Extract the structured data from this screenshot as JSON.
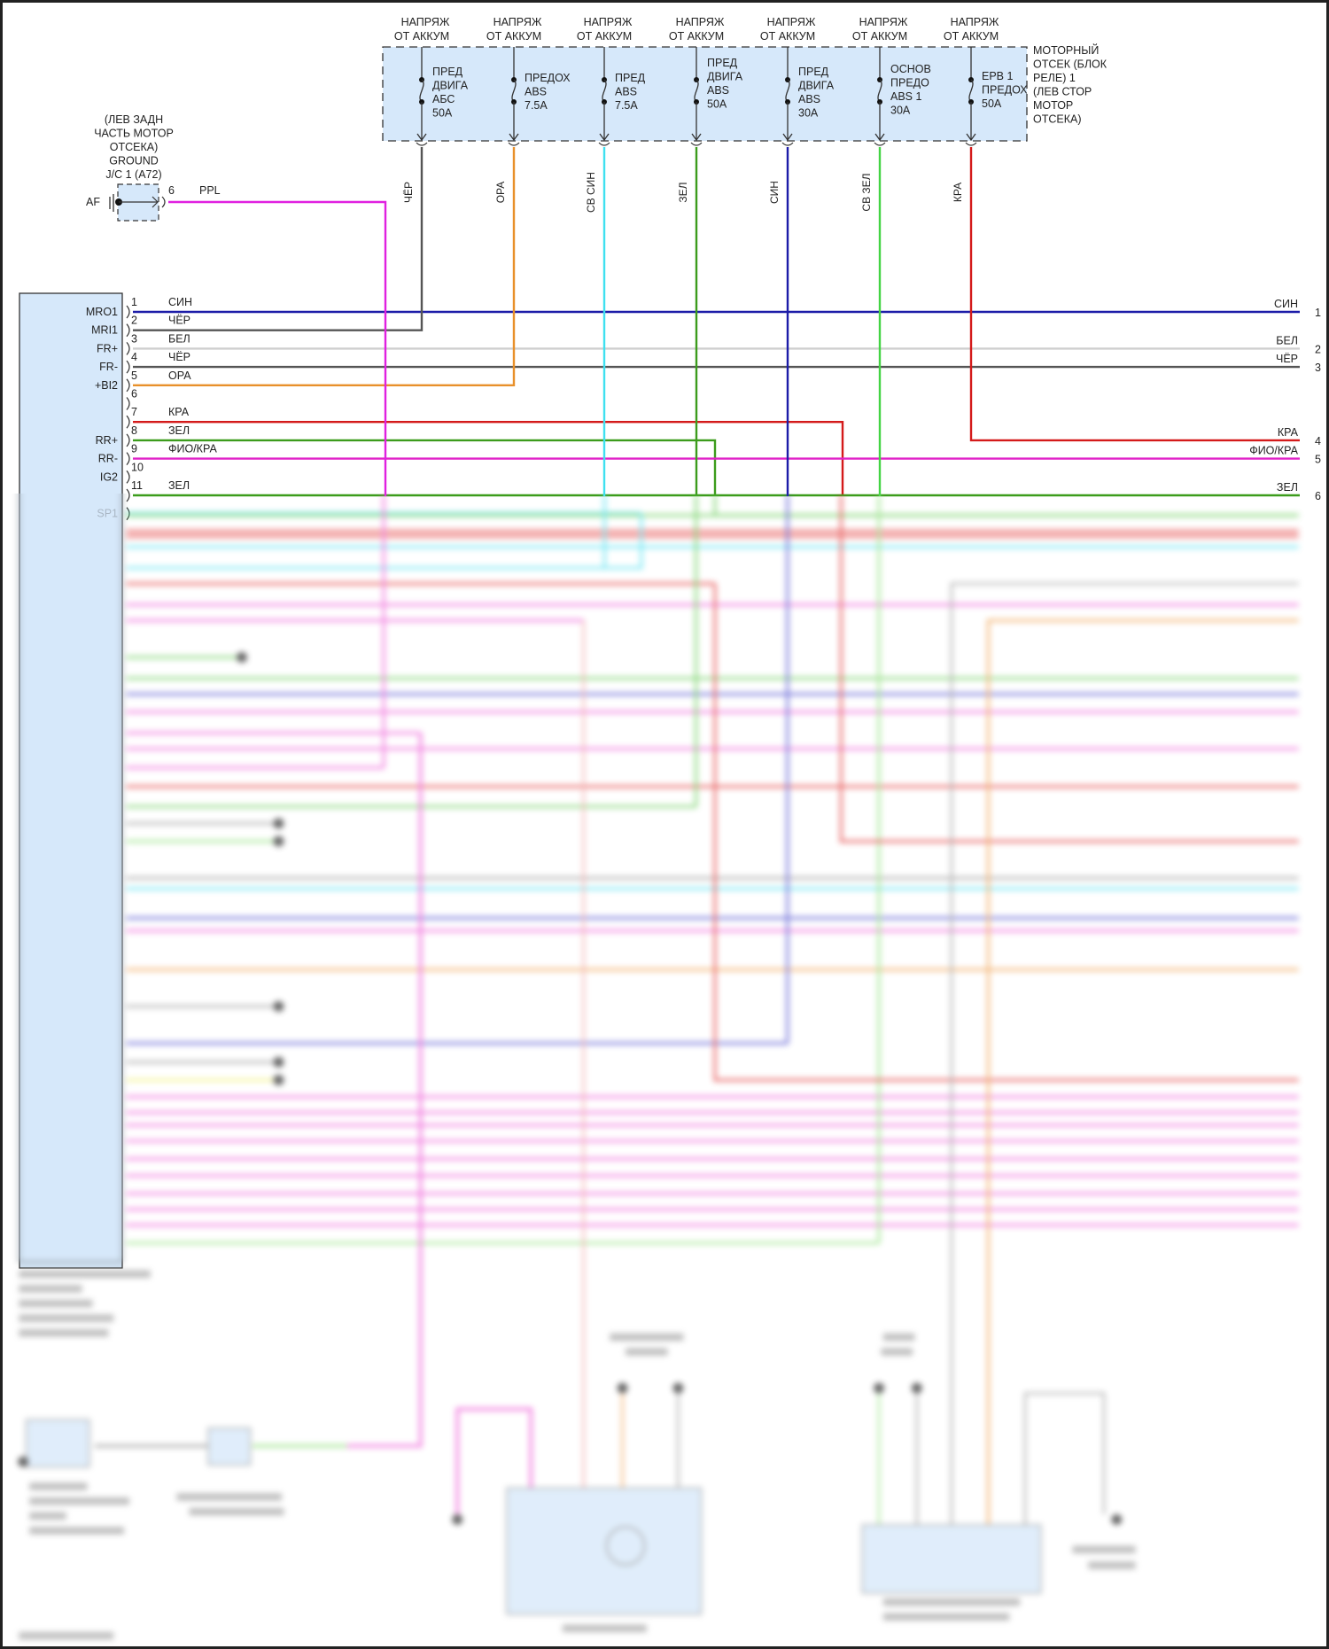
{
  "colors": {
    "СИН": "#1c1ca8",
    "ЧЁР": "#555555",
    "БЕЛ": "#cfcfcf",
    "ОРА": "#e8902a",
    "КРА": "#d41a1a",
    "ЗЕЛ": "#3c9c1c",
    "ФИО/КРА": "#e020c8",
    "СВ СИН": "#3fe0f0",
    "СВ ЗЕЛ": "#44d444",
    "PPL": "#e020e0",
    "box_fill": "#d6e8fa"
  },
  "fuse_block": {
    "location_lines": [
      "МОТОРНЫЙ",
      "ОТСЕК (БЛОК",
      "РЕЛЕ) 1",
      "(ЛЕВ СТОР",
      "МОТОР",
      "ОТСЕКА)"
    ],
    "fuses": [
      {
        "supply": [
          "НАПРЯЖ",
          "ОТ АККУМ"
        ],
        "label": [
          "ПРЕД",
          "ДВИГА",
          "АБС",
          "50A"
        ],
        "wire": "ЧЁР"
      },
      {
        "supply": [
          "НАПРЯЖ",
          "ОТ АККУМ"
        ],
        "label": [
          "ПРЕДОХ",
          "ABS",
          "7.5A"
        ],
        "wire": "ОРА"
      },
      {
        "supply": [
          "НАПРЯЖ",
          "ОТ АККУМ"
        ],
        "label": [
          "ПРЕД",
          "ABS",
          "7.5A"
        ],
        "wire": "СВ СИН"
      },
      {
        "supply": [
          "НАПРЯЖ",
          "ОТ АККУМ"
        ],
        "label": [
          "ПРЕД",
          "ДВИГА",
          "ABS",
          "50A"
        ],
        "wire": "ЗЕЛ"
      },
      {
        "supply": [
          "НАПРЯЖ",
          "ОТ АККУМ"
        ],
        "label": [
          "ПРЕД",
          "ДВИГА",
          "ABS",
          "30A"
        ],
        "wire": "СИН"
      },
      {
        "supply": [
          "НАПРЯЖ",
          "ОТ АККУМ"
        ],
        "label": [
          "ОСНОВ",
          "ПРЕДО",
          "ABS 1",
          "30A"
        ],
        "wire": "СВ ЗЕЛ"
      },
      {
        "supply": [
          "НАПРЯЖ",
          "ОТ АККУМ"
        ],
        "label": [
          "EPB 1",
          "ПРЕДОХ",
          "50A"
        ],
        "wire": "КРА"
      }
    ]
  },
  "ground": {
    "lines": [
      "(ЛЕВ ЗАДН",
      "ЧАСТЬ МОТОР",
      "ОТСЕКА)",
      "GROUND",
      "J/C 1 (A72)"
    ],
    "connector": "AF",
    "pin": "6",
    "wire": "PPL"
  },
  "module": {
    "pins": [
      {
        "n": "1",
        "name": "MRO1",
        "wire": "СИН"
      },
      {
        "n": "2",
        "name": "MRI1",
        "wire": "ЧЁР"
      },
      {
        "n": "3",
        "name": "FR+",
        "wire": "БЕЛ"
      },
      {
        "n": "4",
        "name": "FR-",
        "wire": "ЧЁР"
      },
      {
        "n": "5",
        "name": "+BI2",
        "wire": "ОРА"
      },
      {
        "n": "6",
        "name": "",
        "wire": ""
      },
      {
        "n": "7",
        "name": "",
        "wire": "КРА"
      },
      {
        "n": "8",
        "name": "RR+",
        "wire": "ЗЕЛ"
      },
      {
        "n": "9",
        "name": "RR-",
        "wire": "ФИО/КРА"
      },
      {
        "n": "10",
        "name": "IG2",
        "wire": ""
      },
      {
        "n": "11",
        "name": "",
        "wire": "ЗЕЛ"
      },
      {
        "n": "",
        "name": "SP1",
        "wire": ""
      }
    ]
  },
  "right_connector": {
    "pins": [
      {
        "n": "1",
        "wire": "СИН"
      },
      {
        "n": "2",
        "wire": "БЕЛ"
      },
      {
        "n": "3",
        "wire": "ЧЁР"
      },
      {
        "n": "4",
        "wire": "КРА"
      },
      {
        "n": "5",
        "wire": "ФИО/КРА"
      },
      {
        "n": "6",
        "wire": "ЗЕЛ"
      }
    ]
  }
}
